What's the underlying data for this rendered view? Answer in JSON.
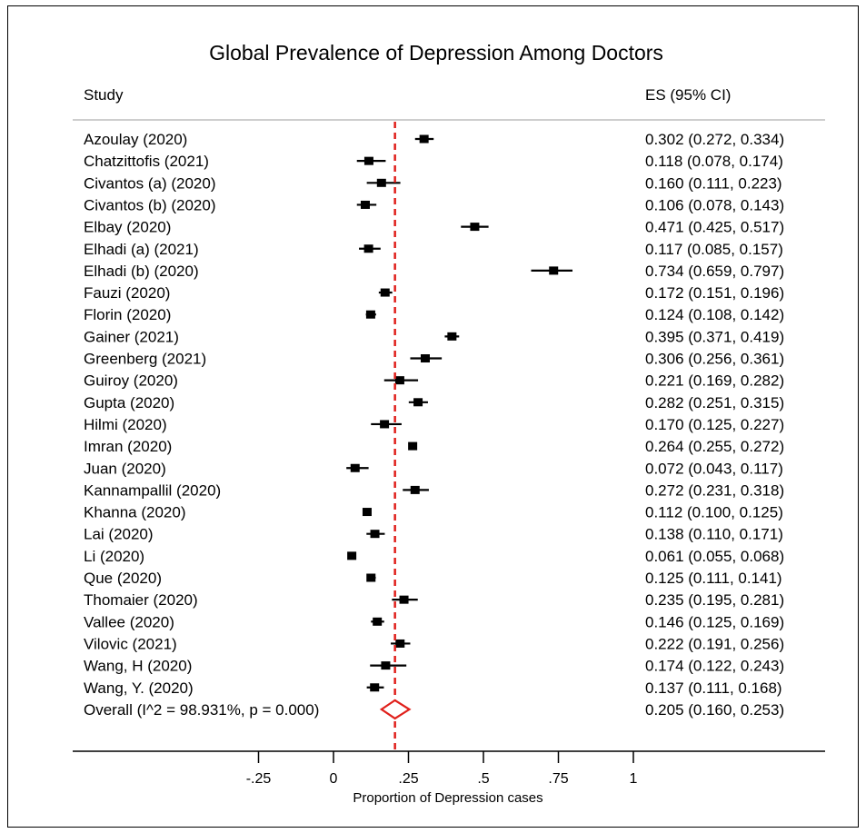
{
  "chart_data": {
    "type": "forest",
    "title": "Global Prevalence of Depression Among Doctors",
    "column_headers": {
      "study": "Study",
      "effect": "ES (95% CI)"
    },
    "xlabel": "Proportion of Depression cases",
    "xlim": [
      -0.25,
      1
    ],
    "xticks": [
      {
        "value": -0.25,
        "label": "-.25"
      },
      {
        "value": 0,
        "label": "0"
      },
      {
        "value": 0.25,
        "label": ".25"
      },
      {
        "value": 0.5,
        "label": ".5"
      },
      {
        "value": 0.75,
        "label": ".75"
      },
      {
        "value": 1,
        "label": "1"
      }
    ],
    "reference_line": {
      "value": 0.205,
      "style": "dashed",
      "color": "#e0201b"
    },
    "colors": {
      "marker": "#000000",
      "overall": "#e0201b"
    },
    "studies": [
      {
        "study": "Azoulay (2020)",
        "es": 0.302,
        "lo": 0.272,
        "hi": 0.334,
        "ci_text": "0.302 (0.272, 0.334)"
      },
      {
        "study": "Chatzittofis (2021)",
        "es": 0.118,
        "lo": 0.078,
        "hi": 0.174,
        "ci_text": "0.118 (0.078, 0.174)"
      },
      {
        "study": "Civantos  (a) (2020)",
        "es": 0.16,
        "lo": 0.111,
        "hi": 0.223,
        "ci_text": "0.160 (0.111, 0.223)"
      },
      {
        "study": "Civantos (b) (2020)",
        "es": 0.106,
        "lo": 0.078,
        "hi": 0.143,
        "ci_text": "0.106 (0.078, 0.143)"
      },
      {
        "study": "Elbay (2020)",
        "es": 0.471,
        "lo": 0.425,
        "hi": 0.517,
        "ci_text": "0.471 (0.425, 0.517)"
      },
      {
        "study": "Elhadi  (a) (2021)",
        "es": 0.117,
        "lo": 0.085,
        "hi": 0.157,
        "ci_text": "0.117 (0.085, 0.157)"
      },
      {
        "study": "Elhadi (b) (2020)",
        "es": 0.734,
        "lo": 0.659,
        "hi": 0.797,
        "ci_text": "0.734 (0.659, 0.797)"
      },
      {
        "study": "Fauzi (2020)",
        "es": 0.172,
        "lo": 0.151,
        "hi": 0.196,
        "ci_text": "0.172 (0.151, 0.196)"
      },
      {
        "study": "Florin (2020)",
        "es": 0.124,
        "lo": 0.108,
        "hi": 0.142,
        "ci_text": "0.124 (0.108, 0.142)"
      },
      {
        "study": "Gainer (2021)",
        "es": 0.395,
        "lo": 0.371,
        "hi": 0.419,
        "ci_text": "0.395 (0.371, 0.419)"
      },
      {
        "study": "Greenberg (2021)",
        "es": 0.306,
        "lo": 0.256,
        "hi": 0.361,
        "ci_text": "0.306 (0.256, 0.361)"
      },
      {
        "study": "Guiroy (2020)",
        "es": 0.221,
        "lo": 0.169,
        "hi": 0.282,
        "ci_text": "0.221 (0.169, 0.282)"
      },
      {
        "study": "Gupta (2020)",
        "es": 0.282,
        "lo": 0.251,
        "hi": 0.315,
        "ci_text": "0.282 (0.251, 0.315)"
      },
      {
        "study": "Hilmi (2020)",
        "es": 0.17,
        "lo": 0.125,
        "hi": 0.227,
        "ci_text": "0.170 (0.125, 0.227)"
      },
      {
        "study": "Imran (2020)",
        "es": 0.264,
        "lo": 0.255,
        "hi": 0.272,
        "ci_text": "0.264 (0.255, 0.272)"
      },
      {
        "study": "Juan (2020)",
        "es": 0.072,
        "lo": 0.043,
        "hi": 0.117,
        "ci_text": "0.072 (0.043, 0.117)"
      },
      {
        "study": "Kannampallil (2020)",
        "es": 0.272,
        "lo": 0.231,
        "hi": 0.318,
        "ci_text": "0.272 (0.231, 0.318)"
      },
      {
        "study": "Khanna (2020)",
        "es": 0.112,
        "lo": 0.1,
        "hi": 0.125,
        "ci_text": "0.112 (0.100, 0.125)"
      },
      {
        "study": "Lai (2020)",
        "es": 0.138,
        "lo": 0.11,
        "hi": 0.171,
        "ci_text": "0.138 (0.110, 0.171)"
      },
      {
        "study": "Li (2020)",
        "es": 0.061,
        "lo": 0.055,
        "hi": 0.068,
        "ci_text": "0.061 (0.055, 0.068)"
      },
      {
        "study": "Que (2020)",
        "es": 0.125,
        "lo": 0.111,
        "hi": 0.141,
        "ci_text": "0.125 (0.111, 0.141)"
      },
      {
        "study": "Thomaier (2020)",
        "es": 0.235,
        "lo": 0.195,
        "hi": 0.281,
        "ci_text": "0.235 (0.195, 0.281)"
      },
      {
        "study": "Vallee (2020)",
        "es": 0.146,
        "lo": 0.125,
        "hi": 0.169,
        "ci_text": "0.146 (0.125, 0.169)"
      },
      {
        "study": "Vilovic (2021)",
        "es": 0.222,
        "lo": 0.191,
        "hi": 0.256,
        "ci_text": "0.222 (0.191, 0.256)"
      },
      {
        "study": "Wang, H (2020)",
        "es": 0.174,
        "lo": 0.122,
        "hi": 0.243,
        "ci_text": "0.174 (0.122, 0.243)"
      },
      {
        "study": "Wang, Y. (2020)",
        "es": 0.137,
        "lo": 0.111,
        "hi": 0.168,
        "ci_text": "0.137 (0.111, 0.168)"
      }
    ],
    "overall": {
      "label": "Overall  (I^2 = 98.931%, p = 0.000)",
      "es": 0.205,
      "lo": 0.16,
      "hi": 0.253,
      "ci_text": "0.205 (0.160, 0.253)"
    }
  }
}
